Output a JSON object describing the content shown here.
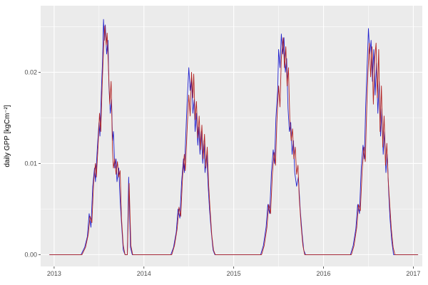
{
  "figure": {
    "background": "#FFFFFF",
    "panel_background": "#EBEBEB",
    "gridline_color": "#FFFFFF",
    "axis_text_color": "#4D4D4D",
    "tick_mark_color": "#333333"
  },
  "chart_data": {
    "type": "line",
    "title": "",
    "xlabel": "",
    "ylabel": "daily GPP [kgCm⁻²]",
    "grid": true,
    "legend_position": "none",
    "xlim": [
      2012.85,
      2017.1
    ],
    "ylim": [
      -0.0013,
      0.0273
    ],
    "x_ticks": {
      "values": [
        2013,
        2014,
        2015,
        2016,
        2017
      ],
      "labels": [
        "2013",
        "2014",
        "2015",
        "2016",
        "2017"
      ]
    },
    "x_minor_ticks": [
      2013.5,
      2014.5,
      2015.5,
      2016.5
    ],
    "y_ticks": {
      "values": [
        0,
        0.01,
        0.02
      ],
      "labels": [
        "0.00",
        "0.01",
        "0.02"
      ]
    },
    "y_minor_ticks": [
      0.005,
      0.015,
      0.025
    ],
    "series": [
      {
        "name": "series_1_blue",
        "color": "#2121CE",
        "points": [
          [
            2012.95,
            0
          ],
          [
            2013.3,
            0
          ],
          [
            2013.34,
            0.0008
          ],
          [
            2013.37,
            0.002
          ],
          [
            2013.39,
            0.0045
          ],
          [
            2013.41,
            0.003
          ],
          [
            2013.43,
            0.0075
          ],
          [
            2013.45,
            0.0095
          ],
          [
            2013.46,
            0.008
          ],
          [
            2013.48,
            0.0115
          ],
          [
            2013.5,
            0.0145
          ],
          [
            2013.51,
            0.013
          ],
          [
            2013.53,
            0.019
          ],
          [
            2013.54,
            0.0215
          ],
          [
            2013.55,
            0.0258
          ],
          [
            2013.56,
            0.0235
          ],
          [
            2013.57,
            0.0252
          ],
          [
            2013.585,
            0.022
          ],
          [
            2013.6,
            0.0235
          ],
          [
            2013.61,
            0.0185
          ],
          [
            2013.625,
            0.0155
          ],
          [
            2013.64,
            0.017
          ],
          [
            2013.65,
            0.0125
          ],
          [
            2013.66,
            0.0135
          ],
          [
            2013.675,
            0.0095
          ],
          [
            2013.69,
            0.0105
          ],
          [
            2013.7,
            0.008
          ],
          [
            2013.72,
            0.0095
          ],
          [
            2013.735,
            0.006
          ],
          [
            2013.75,
            0.0035
          ],
          [
            2013.77,
            0.0005
          ],
          [
            2013.79,
            0
          ],
          [
            2013.815,
            0
          ],
          [
            2013.83,
            0.0085
          ],
          [
            2013.85,
            0.0008
          ],
          [
            2013.87,
            0
          ],
          [
            2014.3,
            0
          ],
          [
            2014.33,
            0.0008
          ],
          [
            2014.36,
            0.0025
          ],
          [
            2014.38,
            0.005
          ],
          [
            2014.4,
            0.004
          ],
          [
            2014.42,
            0.008
          ],
          [
            2014.44,
            0.0105
          ],
          [
            2014.45,
            0.009
          ],
          [
            2014.47,
            0.014
          ],
          [
            2014.48,
            0.0165
          ],
          [
            2014.5,
            0.0205
          ],
          [
            2014.515,
            0.018
          ],
          [
            2014.53,
            0.0195
          ],
          [
            2014.545,
            0.0155
          ],
          [
            2014.56,
            0.017
          ],
          [
            2014.57,
            0.0135
          ],
          [
            2014.585,
            0.0155
          ],
          [
            2014.6,
            0.012
          ],
          [
            2014.61,
            0.014
          ],
          [
            2014.625,
            0.011
          ],
          [
            2014.64,
            0.0135
          ],
          [
            2014.655,
            0.01
          ],
          [
            2014.67,
            0.0125
          ],
          [
            2014.68,
            0.009
          ],
          [
            2014.7,
            0.011
          ],
          [
            2014.715,
            0.0075
          ],
          [
            2014.73,
            0.005
          ],
          [
            2014.75,
            0.0025
          ],
          [
            2014.77,
            0.0005
          ],
          [
            2014.79,
            0
          ],
          [
            2015.3,
            0
          ],
          [
            2015.33,
            0.001
          ],
          [
            2015.36,
            0.003
          ],
          [
            2015.38,
            0.0055
          ],
          [
            2015.4,
            0.0045
          ],
          [
            2015.42,
            0.009
          ],
          [
            2015.44,
            0.0115
          ],
          [
            2015.455,
            0.01
          ],
          [
            2015.47,
            0.015
          ],
          [
            2015.49,
            0.018
          ],
          [
            2015.5,
            0.0225
          ],
          [
            2015.515,
            0.0205
          ],
          [
            2015.53,
            0.0242
          ],
          [
            2015.545,
            0.022
          ],
          [
            2015.56,
            0.0238
          ],
          [
            2015.575,
            0.02
          ],
          [
            2015.59,
            0.0215
          ],
          [
            2015.605,
            0.016
          ],
          [
            2015.62,
            0.0135
          ],
          [
            2015.635,
            0.0145
          ],
          [
            2015.65,
            0.011
          ],
          [
            2015.665,
            0.0125
          ],
          [
            2015.68,
            0.009
          ],
          [
            2015.7,
            0.0075
          ],
          [
            2015.72,
            0.0085
          ],
          [
            2015.74,
            0.005
          ],
          [
            2015.76,
            0.0025
          ],
          [
            2015.78,
            0.0005
          ],
          [
            2015.8,
            0
          ],
          [
            2016.3,
            0
          ],
          [
            2016.33,
            0.001
          ],
          [
            2016.36,
            0.0028
          ],
          [
            2016.38,
            0.0055
          ],
          [
            2016.4,
            0.0045
          ],
          [
            2016.42,
            0.0095
          ],
          [
            2016.44,
            0.012
          ],
          [
            2016.455,
            0.0105
          ],
          [
            2016.47,
            0.0165
          ],
          [
            2016.485,
            0.0205
          ],
          [
            2016.5,
            0.0248
          ],
          [
            2016.515,
            0.022
          ],
          [
            2016.53,
            0.0235
          ],
          [
            2016.545,
            0.019
          ],
          [
            2016.56,
            0.0225
          ],
          [
            2016.575,
            0.0175
          ],
          [
            2016.59,
            0.021
          ],
          [
            2016.605,
            0.0155
          ],
          [
            2016.62,
            0.019
          ],
          [
            2016.635,
            0.013
          ],
          [
            2016.65,
            0.016
          ],
          [
            2016.665,
            0.011
          ],
          [
            2016.68,
            0.0135
          ],
          [
            2016.695,
            0.009
          ],
          [
            2016.71,
            0.011
          ],
          [
            2016.725,
            0.007
          ],
          [
            2016.74,
            0.004
          ],
          [
            2016.76,
            0.0015
          ],
          [
            2016.78,
            0
          ],
          [
            2017.05,
            0
          ]
        ]
      },
      {
        "name": "series_2_red",
        "color": "#B22222",
        "points": [
          [
            2012.95,
            0
          ],
          [
            2013.31,
            0
          ],
          [
            2013.35,
            0.0008
          ],
          [
            2013.38,
            0.0022
          ],
          [
            2013.4,
            0.0042
          ],
          [
            2013.42,
            0.0035
          ],
          [
            2013.44,
            0.008
          ],
          [
            2013.46,
            0.01
          ],
          [
            2013.47,
            0.0085
          ],
          [
            2013.49,
            0.012
          ],
          [
            2013.505,
            0.0155
          ],
          [
            2013.52,
            0.0135
          ],
          [
            2013.535,
            0.0185
          ],
          [
            2013.55,
            0.0225
          ],
          [
            2013.565,
            0.0251
          ],
          [
            2013.58,
            0.023
          ],
          [
            2013.59,
            0.0243
          ],
          [
            2013.605,
            0.0205
          ],
          [
            2013.62,
            0.0165
          ],
          [
            2013.635,
            0.019
          ],
          [
            2013.65,
            0.0115
          ],
          [
            2013.66,
            0.0095
          ],
          [
            2013.675,
            0.0105
          ],
          [
            2013.69,
            0.0088
          ],
          [
            2013.705,
            0.0102
          ],
          [
            2013.72,
            0.0085
          ],
          [
            2013.735,
            0.0092
          ],
          [
            2013.75,
            0.004
          ],
          [
            2013.77,
            0.001
          ],
          [
            2013.79,
            0
          ],
          [
            2013.815,
            0
          ],
          [
            2013.835,
            0.0078
          ],
          [
            2013.855,
            0.001
          ],
          [
            2013.875,
            0
          ],
          [
            2014.31,
            0
          ],
          [
            2014.34,
            0.001
          ],
          [
            2014.37,
            0.0028
          ],
          [
            2014.39,
            0.0052
          ],
          [
            2014.41,
            0.0042
          ],
          [
            2014.43,
            0.0085
          ],
          [
            2014.45,
            0.011
          ],
          [
            2014.46,
            0.0092
          ],
          [
            2014.48,
            0.0135
          ],
          [
            2014.5,
            0.0175
          ],
          [
            2014.515,
            0.0152
          ],
          [
            2014.53,
            0.02
          ],
          [
            2014.545,
            0.0172
          ],
          [
            2014.555,
            0.0198
          ],
          [
            2014.57,
            0.0148
          ],
          [
            2014.585,
            0.0168
          ],
          [
            2014.6,
            0.0128
          ],
          [
            2014.615,
            0.0152
          ],
          [
            2014.63,
            0.0115
          ],
          [
            2014.645,
            0.0142
          ],
          [
            2014.66,
            0.0105
          ],
          [
            2014.675,
            0.0132
          ],
          [
            2014.69,
            0.0095
          ],
          [
            2014.705,
            0.0118
          ],
          [
            2014.72,
            0.0078
          ],
          [
            2014.735,
            0.0052
          ],
          [
            2014.755,
            0.0022
          ],
          [
            2014.775,
            0.0005
          ],
          [
            2014.795,
            0
          ],
          [
            2015.31,
            0
          ],
          [
            2015.34,
            0.001
          ],
          [
            2015.37,
            0.003
          ],
          [
            2015.39,
            0.0055
          ],
          [
            2015.41,
            0.0045
          ],
          [
            2015.43,
            0.0088
          ],
          [
            2015.45,
            0.0112
          ],
          [
            2015.465,
            0.0098
          ],
          [
            2015.48,
            0.0145
          ],
          [
            2015.5,
            0.0185
          ],
          [
            2015.515,
            0.0162
          ],
          [
            2015.53,
            0.0215
          ],
          [
            2015.55,
            0.0238
          ],
          [
            2015.565,
            0.0205
          ],
          [
            2015.58,
            0.0228
          ],
          [
            2015.595,
            0.0185
          ],
          [
            2015.61,
            0.0205
          ],
          [
            2015.625,
            0.0148
          ],
          [
            2015.64,
            0.0125
          ],
          [
            2015.655,
            0.0138
          ],
          [
            2015.67,
            0.0105
          ],
          [
            2015.685,
            0.0118
          ],
          [
            2015.7,
            0.0088
          ],
          [
            2015.715,
            0.0098
          ],
          [
            2015.73,
            0.0062
          ],
          [
            2015.75,
            0.0032
          ],
          [
            2015.77,
            0.001
          ],
          [
            2015.79,
            0
          ],
          [
            2016.31,
            0
          ],
          [
            2016.34,
            0.001
          ],
          [
            2016.37,
            0.003
          ],
          [
            2016.39,
            0.0055
          ],
          [
            2016.41,
            0.0048
          ],
          [
            2016.43,
            0.0092
          ],
          [
            2016.45,
            0.0118
          ],
          [
            2016.465,
            0.0102
          ],
          [
            2016.48,
            0.0158
          ],
          [
            2016.495,
            0.0198
          ],
          [
            2016.51,
            0.0232
          ],
          [
            2016.525,
            0.0195
          ],
          [
            2016.54,
            0.0228
          ],
          [
            2016.555,
            0.0165
          ],
          [
            2016.57,
            0.0215
          ],
          [
            2016.585,
            0.0232
          ],
          [
            2016.6,
            0.0172
          ],
          [
            2016.615,
            0.0225
          ],
          [
            2016.63,
            0.0135
          ],
          [
            2016.645,
            0.0185
          ],
          [
            2016.66,
            0.0118
          ],
          [
            2016.675,
            0.0152
          ],
          [
            2016.69,
            0.0098
          ],
          [
            2016.705,
            0.0122
          ],
          [
            2016.72,
            0.0082
          ],
          [
            2016.735,
            0.0058
          ],
          [
            2016.755,
            0.0028
          ],
          [
            2016.775,
            0.0008
          ],
          [
            2016.795,
            0
          ],
          [
            2017.05,
            0
          ]
        ]
      }
    ]
  }
}
